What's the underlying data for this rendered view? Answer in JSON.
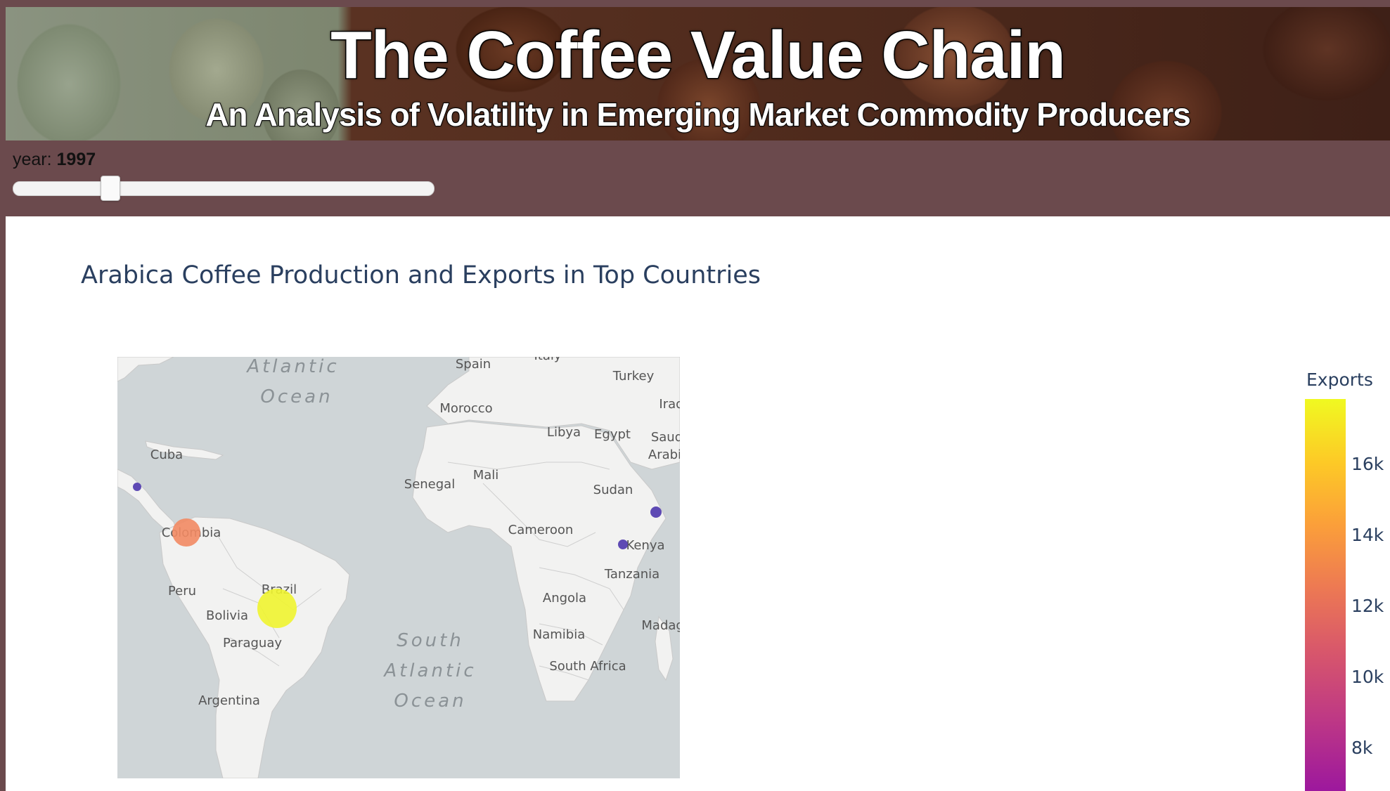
{
  "banner": {
    "title": "The Coffee Value Chain",
    "subtitle": "An Analysis of Volatility in Emerging Market Commodity Producers"
  },
  "slider": {
    "label_prefix": "year: ",
    "value": "1997",
    "position_fraction": 0.23
  },
  "chart": {
    "title": "Arabica Coffee Production and Exports in Top Countries",
    "map_labels": {
      "oceans": [
        "Atlantic",
        "Ocean",
        "South",
        "Atlantic",
        "Ocean"
      ],
      "countries": [
        "Spain",
        "Italy",
        "Turkey",
        "Iraq",
        "Morocco",
        "Libya",
        "Egypt",
        "Saudi",
        "Arabia",
        "Cuba",
        "Senegal",
        "Mali",
        "Sudan",
        "Colombia",
        "Cameroon",
        "Kenya",
        "Tanzania",
        "Peru",
        "Brazil",
        "Angola",
        "Bolivia",
        "Namibia",
        "Madagascar",
        "Paraguay",
        "South Africa",
        "Argentina"
      ]
    },
    "colorbar": {
      "title": "Exports",
      "ticks": [
        "16k",
        "14k",
        "12k",
        "10k",
        "8k"
      ]
    }
  },
  "chart_data": {
    "type": "scatter",
    "title": "Arabica Coffee Production and Exports in Top Countries",
    "color_variable": "Exports",
    "colorbar_ticks": [
      16000,
      14000,
      12000,
      10000,
      8000
    ],
    "points": [
      {
        "country": "Brazil",
        "exports": 17500
      },
      {
        "country": "Colombia",
        "exports": 12800
      },
      {
        "country": "Ethiopia",
        "exports": 2000
      },
      {
        "country": "Kenya",
        "exports": 1500
      },
      {
        "country": "Guatemala",
        "exports": 1200
      }
    ]
  },
  "colors": {
    "page_background": "#6b4a4d",
    "land": "#f2f2f1",
    "water": "#cfd5d7",
    "title_text": "#2a3f5f",
    "bubble_brazil": "#eff430",
    "bubble_colombia": "#f28a63",
    "bubble_small": "#5540b0"
  }
}
